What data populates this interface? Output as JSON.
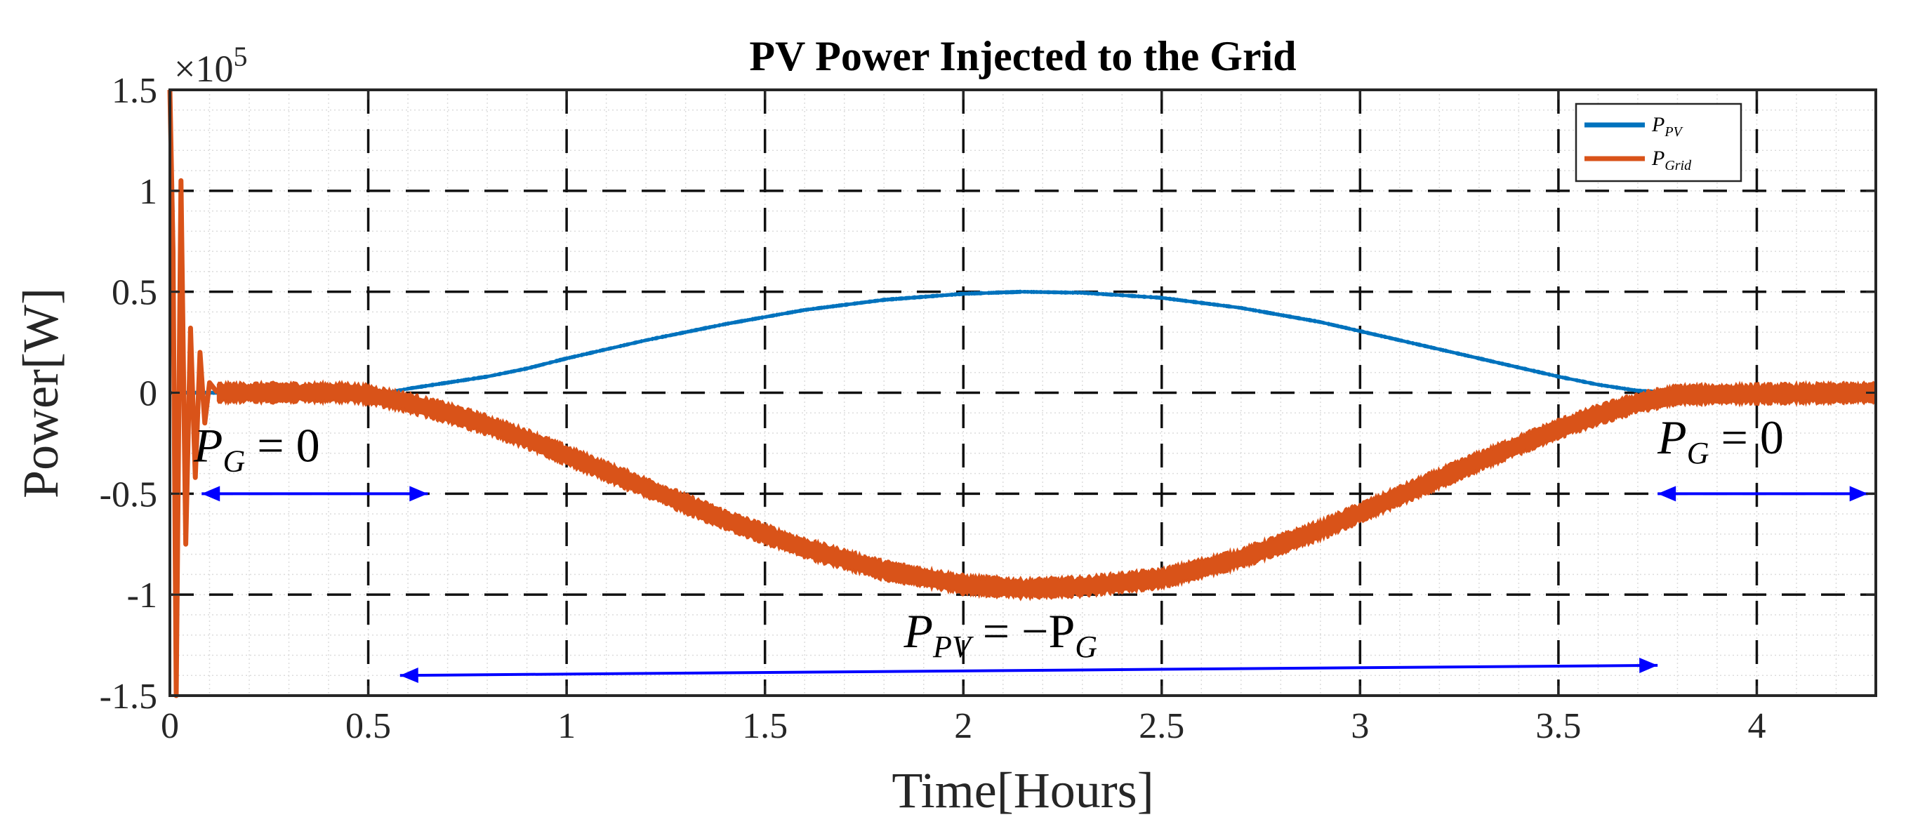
{
  "chart_data": {
    "type": "line",
    "title": "PV Power Injected to the Grid",
    "xlabel": "Time[Hours]",
    "ylabel": "Power[W]",
    "xlim": [
      0,
      4.3
    ],
    "ylim": [
      -1.5,
      1.5
    ],
    "y_scale_label": "×10",
    "y_scale_exponent": "5",
    "x_ticks": [
      0,
      0.5,
      1,
      1.5,
      2,
      2.5,
      3,
      3.5,
      4
    ],
    "x_tick_labels": [
      "0",
      "0.5",
      "1",
      "1.5",
      "2",
      "2.5",
      "3",
      "3.5",
      "4"
    ],
    "y_ticks": [
      -1.5,
      -1,
      -0.5,
      0,
      0.5,
      1,
      1.5
    ],
    "y_tick_labels": [
      "-1.5",
      "-1",
      "-0.5",
      "0",
      "0.5",
      "1",
      "1.5"
    ],
    "grid": true,
    "legend_position": "top-right",
    "series": [
      {
        "name": "P_PV",
        "legend_main": "P",
        "legend_sub": "PV",
        "color": "#0072BD",
        "x": [
          0,
          0.55,
          0.6,
          0.7,
          0.8,
          0.9,
          1.0,
          1.2,
          1.4,
          1.6,
          1.8,
          2.0,
          2.15,
          2.3,
          2.5,
          2.7,
          2.9,
          3.1,
          3.3,
          3.5,
          3.6,
          3.7,
          3.8,
          4.3
        ],
        "values": [
          0,
          0,
          0.02,
          0.05,
          0.08,
          0.12,
          0.17,
          0.26,
          0.34,
          0.41,
          0.46,
          0.49,
          0.5,
          0.495,
          0.47,
          0.42,
          0.35,
          0.26,
          0.17,
          0.08,
          0.04,
          0.01,
          0,
          0
        ],
        "band_width": 0.012
      },
      {
        "name": "P_Grid",
        "legend_main": "P",
        "legend_sub": "Grid",
        "color": "#D95319",
        "x": [
          0.12,
          0.3,
          0.45,
          0.5,
          0.6,
          0.7,
          0.8,
          0.9,
          1.0,
          1.2,
          1.4,
          1.6,
          1.8,
          2.0,
          2.15,
          2.3,
          2.5,
          2.7,
          2.9,
          3.1,
          3.3,
          3.5,
          3.6,
          3.7,
          3.8,
          4.3
        ],
        "values": [
          0,
          0,
          0,
          -0.01,
          -0.05,
          -0.1,
          -0.16,
          -0.23,
          -0.31,
          -0.47,
          -0.63,
          -0.77,
          -0.88,
          -0.95,
          -0.97,
          -0.96,
          -0.92,
          -0.82,
          -0.68,
          -0.51,
          -0.34,
          -0.18,
          -0.11,
          -0.05,
          -0.01,
          0
        ],
        "band_width": 0.09,
        "transient": [
          [
            0,
            1.5
          ],
          [
            0.008,
            0.7
          ],
          [
            0.016,
            -1.5
          ],
          [
            0.028,
            1.05
          ],
          [
            0.04,
            -0.75
          ],
          [
            0.052,
            0.32
          ],
          [
            0.064,
            -0.42
          ],
          [
            0.076,
            0.2
          ],
          [
            0.088,
            -0.15
          ],
          [
            0.1,
            0.05
          ],
          [
            0.12,
            0
          ]
        ]
      }
    ],
    "annotations": [
      {
        "name": "pg-zero-left",
        "label_main": "P",
        "label_sub": "G",
        "label_rest": " = 0",
        "label_x": 0.06,
        "label_y": -0.34,
        "arrow_from": [
          0.08,
          -0.5
        ],
        "arrow_to": [
          0.65,
          -0.5
        ],
        "double": true
      },
      {
        "name": "pg-zero-right",
        "label_main": "P",
        "label_sub": "G",
        "label_rest": " = 0",
        "label_x": 3.75,
        "label_y": -0.3,
        "arrow_from": [
          3.75,
          -0.5
        ],
        "arrow_to": [
          4.28,
          -0.5
        ],
        "double": true
      },
      {
        "name": "ppv-equals-minus-pg",
        "label_main": "P",
        "label_sub": "PV",
        "label_rest": " = −P",
        "label_sub2": "G",
        "label_x": 1.85,
        "label_y": -1.26,
        "arrow_from": [
          0.58,
          -1.4
        ],
        "arrow_to": [
          3.75,
          -1.35
        ],
        "double": true
      }
    ],
    "arrow_color": "#0000FF"
  }
}
